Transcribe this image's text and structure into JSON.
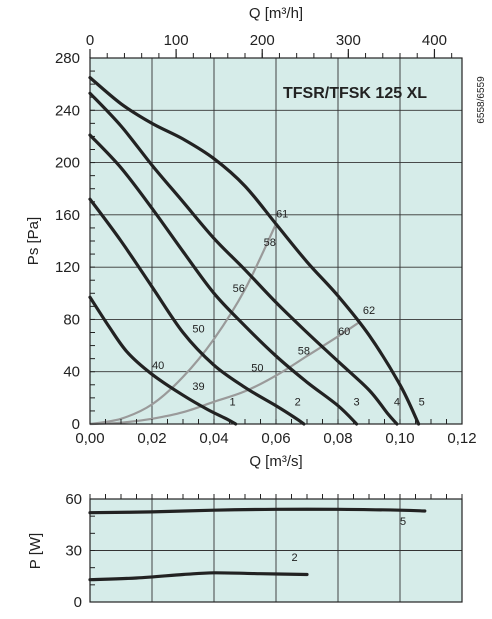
{
  "chart_data": [
    {
      "type": "line",
      "title": "TFSR/TFSK 125 XL",
      "side_code": "6558/6559",
      "xlabel": "Q [m³/s]",
      "x2label": "Q [m³/h]",
      "ylabel": "Ps [Pa]",
      "xlim": [
        0,
        0.12
      ],
      "ylim": [
        0,
        280
      ],
      "x2lim": [
        0,
        432
      ],
      "xticks": [
        "0,00",
        "0,02",
        "0,04",
        "0,06",
        "0,08",
        "0,10",
        "0,12"
      ],
      "x2ticks": [
        "0",
        "100",
        "200",
        "300",
        "400"
      ],
      "yticks": [
        "0",
        "40",
        "80",
        "120",
        "160",
        "200",
        "240",
        "280"
      ],
      "grid": true,
      "colors": {
        "background": "#d6ece9",
        "curve": "#222222",
        "system_curve": "#9a9a9a",
        "grid": "#333333"
      },
      "series": [
        {
          "name": "1",
          "points": [
            [
              0,
              97
            ],
            [
              0.006,
              75
            ],
            [
              0.012,
              55
            ],
            [
              0.02,
              38
            ],
            [
              0.03,
              22
            ],
            [
              0.038,
              11
            ],
            [
              0.044,
              4
            ],
            [
              0.047,
              0
            ]
          ]
        },
        {
          "name": "2",
          "points": [
            [
              0,
              172
            ],
            [
              0.01,
              140
            ],
            [
              0.02,
              105
            ],
            [
              0.03,
              70
            ],
            [
              0.04,
              45
            ],
            [
              0.05,
              28
            ],
            [
              0.06,
              14
            ],
            [
              0.066,
              5
            ],
            [
              0.069,
              0
            ]
          ]
        },
        {
          "name": "3",
          "points": [
            [
              0,
              221
            ],
            [
              0.01,
              196
            ],
            [
              0.02,
              165
            ],
            [
              0.03,
              132
            ],
            [
              0.04,
              100
            ],
            [
              0.05,
              75
            ],
            [
              0.06,
              52
            ],
            [
              0.07,
              32
            ],
            [
              0.08,
              14
            ],
            [
              0.086,
              0
            ]
          ]
        },
        {
          "name": "4",
          "points": [
            [
              0,
              253
            ],
            [
              0.01,
              228
            ],
            [
              0.02,
              198
            ],
            [
              0.03,
              170
            ],
            [
              0.04,
              142
            ],
            [
              0.05,
              118
            ],
            [
              0.06,
              93
            ],
            [
              0.07,
              70
            ],
            [
              0.08,
              48
            ],
            [
              0.09,
              26
            ],
            [
              0.096,
              8
            ],
            [
              0.099,
              0
            ]
          ]
        },
        {
          "name": "5",
          "points": [
            [
              0,
              265
            ],
            [
              0.01,
              245
            ],
            [
              0.02,
              230
            ],
            [
              0.03,
              218
            ],
            [
              0.04,
              203
            ],
            [
              0.05,
              182
            ],
            [
              0.06,
              153
            ],
            [
              0.07,
              124
            ],
            [
              0.08,
              98
            ],
            [
              0.09,
              68
            ],
            [
              0.1,
              30
            ],
            [
              0.106,
              0
            ]
          ]
        }
      ],
      "system_curves": [
        {
          "name": "upper",
          "points": [
            [
              0,
              0
            ],
            [
              0.01,
              4
            ],
            [
              0.02,
              15
            ],
            [
              0.03,
              36
            ],
            [
              0.04,
              65
            ],
            [
              0.05,
              103
            ],
            [
              0.06,
              153
            ]
          ]
        },
        {
          "name": "lower",
          "points": [
            [
              0,
              0
            ],
            [
              0.01,
              1
            ],
            [
              0.02,
              4
            ],
            [
              0.03,
              9
            ],
            [
              0.04,
              17
            ],
            [
              0.05,
              25
            ],
            [
              0.06,
              37
            ],
            [
              0.07,
              52
            ],
            [
              0.08,
              67
            ],
            [
              0.087,
              78
            ]
          ]
        }
      ],
      "curve_labels": [
        {
          "text": "1",
          "x": 0.046,
          "y": 14
        },
        {
          "text": "2",
          "x": 0.067,
          "y": 14
        },
        {
          "text": "3",
          "x": 0.086,
          "y": 14
        },
        {
          "text": "4",
          "x": 0.099,
          "y": 14
        },
        {
          "text": "5",
          "x": 0.107,
          "y": 14
        }
      ],
      "noise_levels": [
        {
          "text": "40",
          "x": 0.022,
          "y": 42
        },
        {
          "text": "39",
          "x": 0.035,
          "y": 26
        },
        {
          "text": "50",
          "x": 0.035,
          "y": 70
        },
        {
          "text": "50",
          "x": 0.054,
          "y": 40
        },
        {
          "text": "56",
          "x": 0.048,
          "y": 101
        },
        {
          "text": "58",
          "x": 0.058,
          "y": 136
        },
        {
          "text": "58",
          "x": 0.069,
          "y": 53
        },
        {
          "text": "60",
          "x": 0.082,
          "y": 68
        },
        {
          "text": "61",
          "x": 0.062,
          "y": 158
        },
        {
          "text": "62",
          "x": 0.09,
          "y": 84
        }
      ]
    },
    {
      "type": "line",
      "xlabel": "",
      "ylabel": "P [W]",
      "xlim": [
        0,
        0.12
      ],
      "ylim": [
        0,
        60
      ],
      "yticks": [
        "0",
        "30",
        "60"
      ],
      "grid": true,
      "series": [
        {
          "name": "5",
          "points": [
            [
              0,
              52
            ],
            [
              0.02,
              52.5
            ],
            [
              0.04,
              53.5
            ],
            [
              0.06,
              54
            ],
            [
              0.08,
              54
            ],
            [
              0.1,
              53.5
            ],
            [
              0.108,
              53
            ]
          ]
        },
        {
          "name": "2",
          "points": [
            [
              0,
              13
            ],
            [
              0.015,
              14
            ],
            [
              0.03,
              16
            ],
            [
              0.04,
              17
            ],
            [
              0.055,
              16.5
            ],
            [
              0.07,
              16
            ]
          ]
        }
      ],
      "curve_labels": [
        {
          "text": "5",
          "x": 0.101,
          "y": 45
        },
        {
          "text": "2",
          "x": 0.066,
          "y": 24
        }
      ]
    }
  ]
}
